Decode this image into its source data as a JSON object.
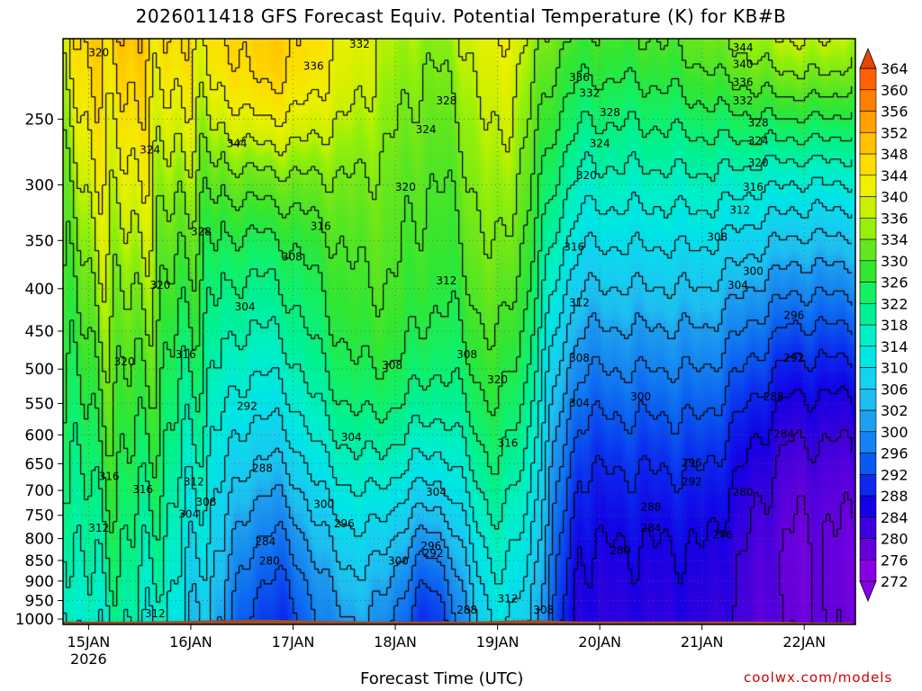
{
  "title": "2026011418 GFS Forecast Equiv. Potential Temperature (K) for KB#B",
  "x_axis_label": "Forecast Time (UTC)",
  "credit": "coolwx.com/models",
  "colors": {
    "ground": "#9b4f2c",
    "contour": "#000000",
    "grid": "#555555"
  },
  "chart_data": {
    "type": "heatmap",
    "title": "2026011418 GFS Forecast Equiv. Potential Temperature (K) for KB#B",
    "xlabel": "Forecast Time (UTC)",
    "ylabel": "",
    "x_range": [
      "2026-01-14T18Z",
      "2026-01-22T12Z"
    ],
    "x_ticks": [
      {
        "label": "15JAN",
        "sub": "2026",
        "day": 0.25
      },
      {
        "label": "16JAN",
        "day": 1.25
      },
      {
        "label": "17JAN",
        "day": 2.25
      },
      {
        "label": "18JAN",
        "day": 3.25
      },
      {
        "label": "19JAN",
        "day": 4.25
      },
      {
        "label": "20JAN",
        "day": 5.25
      },
      {
        "label": "21JAN",
        "day": 6.25
      },
      {
        "label": "22JAN",
        "day": 7.25
      }
    ],
    "y_scale": "log-pressure (hPa), inverted",
    "y_range": [
      1015,
      200
    ],
    "y_ticks": [
      250,
      300,
      350,
      400,
      450,
      500,
      550,
      600,
      650,
      700,
      750,
      800,
      850,
      900,
      950,
      1000
    ],
    "colorbar": {
      "levels": [
        272,
        276,
        280,
        284,
        288,
        292,
        296,
        300,
        302,
        306,
        310,
        314,
        318,
        322,
        326,
        330,
        334,
        336,
        340,
        344,
        348,
        352,
        356,
        360,
        364
      ],
      "colors": [
        "#8a00e6",
        "#6400dc",
        "#3c00dc",
        "#1400e6",
        "#0a28ee",
        "#0a5af0",
        "#1482f0",
        "#1ea0f0",
        "#1ebef0",
        "#14d2f0",
        "#00e6e6",
        "#00f0c8",
        "#00f096",
        "#14f064",
        "#32e632",
        "#64e61e",
        "#96f00a",
        "#c8f000",
        "#f0f000",
        "#ffdc00",
        "#ffc000",
        "#ffa000",
        "#ff8000",
        "#ff6000",
        "#e64600"
      ]
    },
    "contour_labels": [
      {
        "v": "320",
        "day": 0.35,
        "p": 210
      },
      {
        "v": "324",
        "day": 0.85,
        "p": 275
      },
      {
        "v": "328",
        "day": 1.35,
        "p": 345
      },
      {
        "v": "320",
        "day": 0.95,
        "p": 400
      },
      {
        "v": "320",
        "day": 0.6,
        "p": 495
      },
      {
        "v": "316",
        "day": 1.2,
        "p": 485
      },
      {
        "v": "316",
        "day": 0.45,
        "p": 680
      },
      {
        "v": "316",
        "day": 0.78,
        "p": 705
      },
      {
        "v": "312",
        "day": 0.35,
        "p": 785
      },
      {
        "v": "312",
        "day": 0.9,
        "p": 995
      },
      {
        "v": "312",
        "day": 1.28,
        "p": 690
      },
      {
        "v": "308",
        "day": 1.4,
        "p": 730
      },
      {
        "v": "304",
        "day": 1.23,
        "p": 755
      },
      {
        "v": "344",
        "day": 1.7,
        "p": 270
      },
      {
        "v": "336",
        "day": 2.45,
        "p": 218
      },
      {
        "v": "332",
        "day": 2.9,
        "p": 205
      },
      {
        "v": "328",
        "day": 3.75,
        "p": 240
      },
      {
        "v": "324",
        "day": 3.55,
        "p": 260
      },
      {
        "v": "320",
        "day": 3.35,
        "p": 305
      },
      {
        "v": "316",
        "day": 2.52,
        "p": 340
      },
      {
        "v": "308",
        "day": 2.24,
        "p": 370
      },
      {
        "v": "304",
        "day": 1.78,
        "p": 425
      },
      {
        "v": "312",
        "day": 3.75,
        "p": 395
      },
      {
        "v": "308",
        "day": 3.22,
        "p": 500
      },
      {
        "v": "308",
        "day": 3.95,
        "p": 485
      },
      {
        "v": "320",
        "day": 4.25,
        "p": 520
      },
      {
        "v": "316",
        "day": 4.35,
        "p": 620
      },
      {
        "v": "292",
        "day": 1.8,
        "p": 560
      },
      {
        "v": "288",
        "day": 1.95,
        "p": 665
      },
      {
        "v": "304",
        "day": 2.82,
        "p": 610
      },
      {
        "v": "304",
        "day": 3.65,
        "p": 710
      },
      {
        "v": "300",
        "day": 2.55,
        "p": 735
      },
      {
        "v": "296",
        "day": 2.75,
        "p": 775
      },
      {
        "v": "284",
        "day": 1.98,
        "p": 815
      },
      {
        "v": "280",
        "day": 2.02,
        "p": 860
      },
      {
        "v": "300",
        "day": 3.28,
        "p": 860
      },
      {
        "v": "296",
        "day": 3.6,
        "p": 825
      },
      {
        "v": "292",
        "day": 3.62,
        "p": 842
      },
      {
        "v": "288",
        "day": 3.95,
        "p": 985
      },
      {
        "v": "312",
        "day": 4.35,
        "p": 955
      },
      {
        "v": "308",
        "day": 4.7,
        "p": 985
      },
      {
        "v": "316",
        "day": 5.0,
        "p": 360
      },
      {
        "v": "312",
        "day": 5.05,
        "p": 420
      },
      {
        "v": "308",
        "day": 5.05,
        "p": 490
      },
      {
        "v": "304",
        "day": 5.05,
        "p": 555
      },
      {
        "v": "300",
        "day": 5.65,
        "p": 545
      },
      {
        "v": "320",
        "day": 5.12,
        "p": 295
      },
      {
        "v": "324",
        "day": 5.25,
        "p": 270
      },
      {
        "v": "328",
        "day": 5.35,
        "p": 248
      },
      {
        "v": "332",
        "day": 5.15,
        "p": 235
      },
      {
        "v": "336",
        "day": 5.05,
        "p": 225
      },
      {
        "v": "296",
        "day": 6.15,
        "p": 655
      },
      {
        "v": "292",
        "day": 6.15,
        "p": 690
      },
      {
        "v": "288",
        "day": 5.75,
        "p": 740
      },
      {
        "v": "284",
        "day": 5.75,
        "p": 785
      },
      {
        "v": "280",
        "day": 5.45,
        "p": 835
      },
      {
        "v": "308",
        "day": 6.4,
        "p": 350
      },
      {
        "v": "304",
        "day": 6.6,
        "p": 400
      },
      {
        "v": "300",
        "day": 6.75,
        "p": 385
      },
      {
        "v": "296",
        "day": 7.15,
        "p": 435
      },
      {
        "v": "292",
        "day": 7.15,
        "p": 490
      },
      {
        "v": "288",
        "day": 6.95,
        "p": 545
      },
      {
        "v": "284",
        "day": 7.05,
        "p": 605
      },
      {
        "v": "280",
        "day": 6.65,
        "p": 710
      },
      {
        "v": "276",
        "day": 6.45,
        "p": 800
      },
      {
        "v": "312",
        "day": 6.62,
        "p": 325
      },
      {
        "v": "316",
        "day": 6.75,
        "p": 305
      },
      {
        "v": "320",
        "day": 6.8,
        "p": 285
      },
      {
        "v": "324",
        "day": 6.8,
        "p": 268
      },
      {
        "v": "328",
        "day": 6.8,
        "p": 255
      },
      {
        "v": "332",
        "day": 6.65,
        "p": 240
      },
      {
        "v": "336",
        "day": 6.65,
        "p": 228
      },
      {
        "v": "340",
        "day": 6.65,
        "p": 217
      },
      {
        "v": "344",
        "day": 6.65,
        "p": 207
      }
    ]
  }
}
